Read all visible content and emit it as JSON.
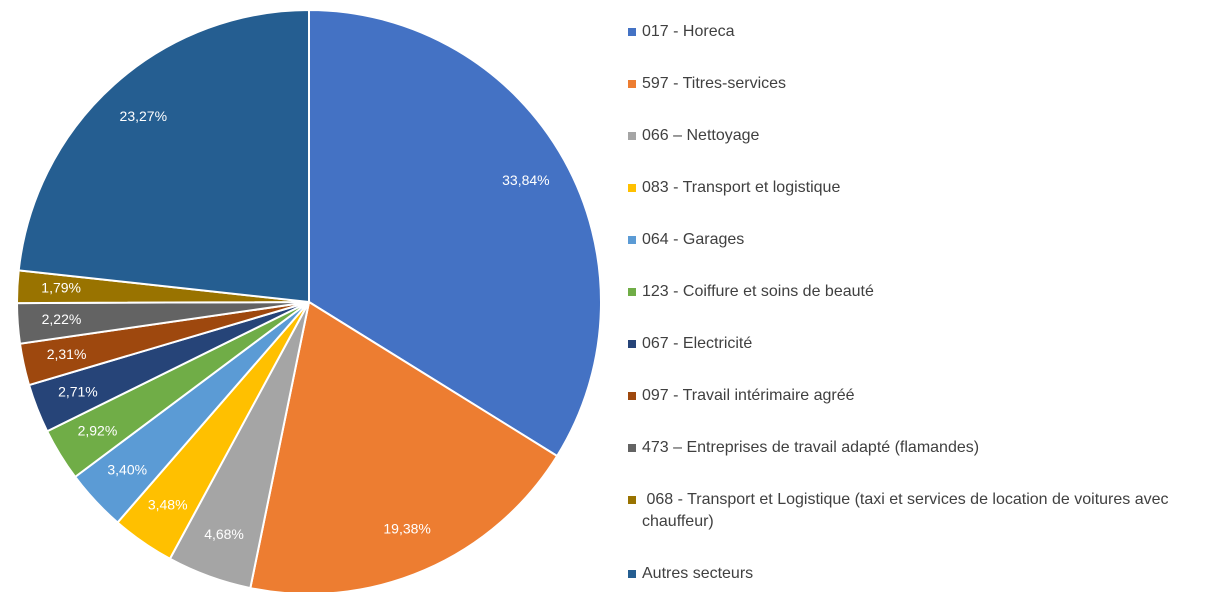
{
  "chart_data": {
    "type": "pie",
    "categories": [
      "017 - Horeca",
      "597 - Titres-services",
      "066 – Nettoyage",
      "083 - Transport et logistique",
      "064 - Garages",
      "123 - Coiffure et soins de beauté",
      "067 - Electricité",
      "097 - Travail intérimaire agréé",
      "473 – Entreprises de travail adapté (flamandes)",
      " 068 - Transport et Logistique (taxi et services de location de voitures avec chauffeur)",
      "Autres secteurs"
    ],
    "values": [
      33.84,
      19.38,
      4.68,
      3.48,
      3.4,
      2.92,
      2.71,
      2.31,
      2.22,
      1.79,
      23.27
    ],
    "value_labels": [
      "33,84%",
      "19,38%",
      "4,68%",
      "3,48%",
      "3,40%",
      "2,92%",
      "2,71%",
      "2,31%",
      "2,22%",
      "1,79%",
      "23,27%"
    ],
    "colors": [
      "#4472c4",
      "#ed7d31",
      "#a5a5a5",
      "#ffc000",
      "#5b9bd5",
      "#70ad47",
      "#264478",
      "#9e480e",
      "#636363",
      "#997300",
      "#255e91"
    ],
    "legend": "right"
  }
}
